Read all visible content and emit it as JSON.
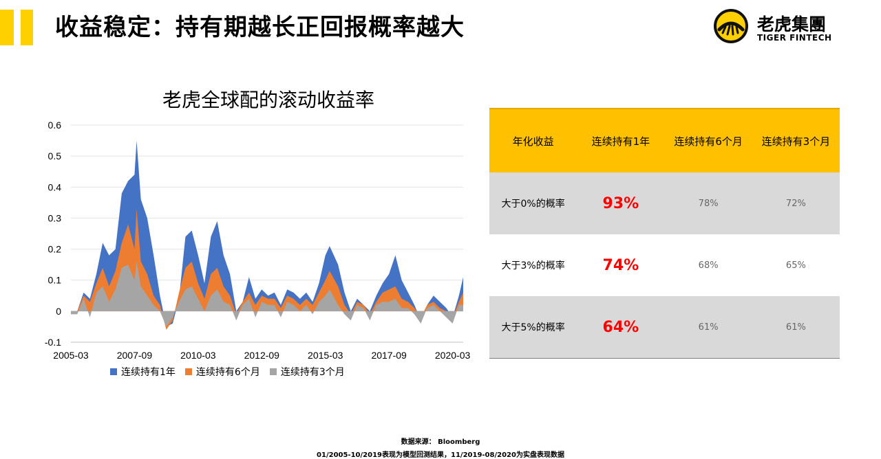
{
  "page": {
    "title": "收益稳定：持有期越长正回报概率越大",
    "accent_color": "#ffd000"
  },
  "logo": {
    "name_cn": "老虎集團",
    "name_en": "TIGER FINTECH",
    "icon": "tiger-logo-icon"
  },
  "chart_data": {
    "type": "area",
    "title": "老虎全球配的滚动收益率",
    "x_tick_labels": [
      "2005-03",
      "2007-09",
      "2010-03",
      "2012-09",
      "2015-03",
      "2017-09",
      "2020-03"
    ],
    "x_range": [
      "2005-03",
      "2020-08"
    ],
    "y_ticks": [
      "0.6",
      "0.5",
      "0.4",
      "0.3",
      "0.2",
      "0.1",
      "0",
      "-0.1"
    ],
    "ylim": [
      -0.1,
      0.6
    ],
    "grid": true,
    "legend_position": "bottom",
    "series": [
      {
        "name": "连续持有1年",
        "color": "#4472c4",
        "points": [
          [
            "2005-03",
            -0.01
          ],
          [
            "2005-06",
            0.0
          ],
          [
            "2005-09",
            0.06
          ],
          [
            "2005-12",
            0.04
          ],
          [
            "2006-03",
            0.12
          ],
          [
            "2006-06",
            0.22
          ],
          [
            "2006-09",
            0.18
          ],
          [
            "2006-12",
            0.2
          ],
          [
            "2007-03",
            0.38
          ],
          [
            "2007-06",
            0.42
          ],
          [
            "2007-09",
            0.44
          ],
          [
            "2007-10",
            0.55
          ],
          [
            "2007-12",
            0.36
          ],
          [
            "2008-03",
            0.3
          ],
          [
            "2008-06",
            0.18
          ],
          [
            "2008-09",
            0.05
          ],
          [
            "2008-12",
            -0.05
          ],
          [
            "2009-03",
            -0.04
          ],
          [
            "2009-06",
            0.04
          ],
          [
            "2009-09",
            0.24
          ],
          [
            "2009-12",
            0.26
          ],
          [
            "2010-03",
            0.18
          ],
          [
            "2010-06",
            0.09
          ],
          [
            "2010-09",
            0.24
          ],
          [
            "2010-12",
            0.29
          ],
          [
            "2011-03",
            0.18
          ],
          [
            "2011-06",
            0.12
          ],
          [
            "2011-09",
            0.0
          ],
          [
            "2011-12",
            0.03
          ],
          [
            "2012-03",
            0.11
          ],
          [
            "2012-06",
            0.04
          ],
          [
            "2012-09",
            0.07
          ],
          [
            "2012-12",
            0.05
          ],
          [
            "2013-03",
            0.06
          ],
          [
            "2013-06",
            0.02
          ],
          [
            "2013-09",
            0.07
          ],
          [
            "2013-12",
            0.06
          ],
          [
            "2014-03",
            0.04
          ],
          [
            "2014-06",
            0.06
          ],
          [
            "2014-09",
            0.03
          ],
          [
            "2014-12",
            0.09
          ],
          [
            "2015-03",
            0.18
          ],
          [
            "2015-05",
            0.21
          ],
          [
            "2015-09",
            0.15
          ],
          [
            "2015-12",
            0.06
          ],
          [
            "2016-03",
            0.0
          ],
          [
            "2016-06",
            0.04
          ],
          [
            "2016-09",
            0.02
          ],
          [
            "2016-12",
            0.0
          ],
          [
            "2017-03",
            0.05
          ],
          [
            "2017-06",
            0.09
          ],
          [
            "2017-09",
            0.12
          ],
          [
            "2017-12",
            0.18
          ],
          [
            "2018-03",
            0.1
          ],
          [
            "2018-06",
            0.06
          ],
          [
            "2018-09",
            0.02
          ],
          [
            "2018-12",
            -0.03
          ],
          [
            "2019-03",
            0.02
          ],
          [
            "2019-06",
            0.05
          ],
          [
            "2019-09",
            0.03
          ],
          [
            "2019-12",
            0.01
          ],
          [
            "2020-03",
            -0.02
          ],
          [
            "2020-06",
            0.05
          ],
          [
            "2020-08",
            0.11
          ]
        ]
      },
      {
        "name": "连续持有6个月",
        "color": "#ed7d31",
        "points": [
          [
            "2005-03",
            -0.01
          ],
          [
            "2005-06",
            0.0
          ],
          [
            "2005-09",
            0.05
          ],
          [
            "2005-12",
            0.03
          ],
          [
            "2006-03",
            0.09
          ],
          [
            "2006-06",
            0.14
          ],
          [
            "2006-09",
            0.08
          ],
          [
            "2006-12",
            0.13
          ],
          [
            "2007-03",
            0.22
          ],
          [
            "2007-06",
            0.28
          ],
          [
            "2007-09",
            0.2
          ],
          [
            "2007-10",
            0.33
          ],
          [
            "2007-12",
            0.16
          ],
          [
            "2008-03",
            0.12
          ],
          [
            "2008-06",
            0.05
          ],
          [
            "2008-09",
            0.02
          ],
          [
            "2008-12",
            -0.06
          ],
          [
            "2009-03",
            -0.03
          ],
          [
            "2009-06",
            0.06
          ],
          [
            "2009-09",
            0.14
          ],
          [
            "2009-12",
            0.16
          ],
          [
            "2010-03",
            0.09
          ],
          [
            "2010-06",
            0.04
          ],
          [
            "2010-09",
            0.12
          ],
          [
            "2010-12",
            0.14
          ],
          [
            "2011-03",
            0.08
          ],
          [
            "2011-06",
            0.05
          ],
          [
            "2011-09",
            -0.01
          ],
          [
            "2011-12",
            0.03
          ],
          [
            "2012-03",
            0.06
          ],
          [
            "2012-06",
            0.02
          ],
          [
            "2012-09",
            0.05
          ],
          [
            "2012-12",
            0.04
          ],
          [
            "2013-03",
            0.04
          ],
          [
            "2013-06",
            0.01
          ],
          [
            "2013-09",
            0.05
          ],
          [
            "2013-12",
            0.04
          ],
          [
            "2014-03",
            0.02
          ],
          [
            "2014-06",
            0.04
          ],
          [
            "2014-09",
            0.02
          ],
          [
            "2014-12",
            0.06
          ],
          [
            "2015-03",
            0.1
          ],
          [
            "2015-05",
            0.13
          ],
          [
            "2015-09",
            0.08
          ],
          [
            "2015-12",
            0.02
          ],
          [
            "2016-03",
            -0.01
          ],
          [
            "2016-06",
            0.03
          ],
          [
            "2016-09",
            0.02
          ],
          [
            "2016-12",
            -0.01
          ],
          [
            "2017-03",
            0.03
          ],
          [
            "2017-06",
            0.06
          ],
          [
            "2017-09",
            0.07
          ],
          [
            "2017-12",
            0.08
          ],
          [
            "2018-03",
            0.04
          ],
          [
            "2018-06",
            0.03
          ],
          [
            "2018-09",
            0.01
          ],
          [
            "2018-12",
            -0.02
          ],
          [
            "2019-03",
            0.02
          ],
          [
            "2019-06",
            0.03
          ],
          [
            "2019-09",
            0.01
          ],
          [
            "2019-12",
            0.0
          ],
          [
            "2020-03",
            -0.02
          ],
          [
            "2020-06",
            0.03
          ],
          [
            "2020-08",
            0.06
          ]
        ]
      },
      {
        "name": "连续持有3个月",
        "color": "#a5a5a5",
        "points": [
          [
            "2005-03",
            -0.01
          ],
          [
            "2005-06",
            -0.01
          ],
          [
            "2005-09",
            0.04
          ],
          [
            "2005-12",
            -0.02
          ],
          [
            "2006-03",
            0.06
          ],
          [
            "2006-06",
            0.08
          ],
          [
            "2006-09",
            0.03
          ],
          [
            "2006-12",
            0.07
          ],
          [
            "2007-03",
            0.14
          ],
          [
            "2007-06",
            0.15
          ],
          [
            "2007-09",
            0.1
          ],
          [
            "2007-10",
            0.16
          ],
          [
            "2007-12",
            0.08
          ],
          [
            "2008-03",
            0.05
          ],
          [
            "2008-06",
            0.02
          ],
          [
            "2008-09",
            0.0
          ],
          [
            "2008-12",
            -0.05
          ],
          [
            "2009-03",
            -0.02
          ],
          [
            "2009-06",
            0.03
          ],
          [
            "2009-09",
            0.07
          ],
          [
            "2009-12",
            0.08
          ],
          [
            "2010-03",
            0.04
          ],
          [
            "2010-06",
            0.0
          ],
          [
            "2010-09",
            0.05
          ],
          [
            "2010-12",
            0.07
          ],
          [
            "2011-03",
            0.03
          ],
          [
            "2011-06",
            0.02
          ],
          [
            "2011-09",
            -0.03
          ],
          [
            "2011-12",
            0.02
          ],
          [
            "2012-03",
            0.04
          ],
          [
            "2012-06",
            -0.02
          ],
          [
            "2012-09",
            0.03
          ],
          [
            "2012-12",
            0.02
          ],
          [
            "2013-03",
            0.02
          ],
          [
            "2013-06",
            -0.02
          ],
          [
            "2013-09",
            0.03
          ],
          [
            "2013-12",
            0.02
          ],
          [
            "2014-03",
            0.0
          ],
          [
            "2014-06",
            0.02
          ],
          [
            "2014-09",
            -0.01
          ],
          [
            "2014-12",
            0.03
          ],
          [
            "2015-03",
            0.05
          ],
          [
            "2015-05",
            0.07
          ],
          [
            "2015-09",
            0.02
          ],
          [
            "2015-12",
            -0.01
          ],
          [
            "2016-03",
            -0.03
          ],
          [
            "2016-06",
            0.02
          ],
          [
            "2016-09",
            0.01
          ],
          [
            "2016-12",
            -0.03
          ],
          [
            "2017-03",
            0.02
          ],
          [
            "2017-06",
            0.03
          ],
          [
            "2017-09",
            0.03
          ],
          [
            "2017-12",
            0.04
          ],
          [
            "2018-03",
            0.01
          ],
          [
            "2018-06",
            0.01
          ],
          [
            "2018-09",
            -0.01
          ],
          [
            "2018-12",
            -0.04
          ],
          [
            "2019-03",
            0.01
          ],
          [
            "2019-06",
            0.02
          ],
          [
            "2019-09",
            0.0
          ],
          [
            "2019-12",
            -0.02
          ],
          [
            "2020-03",
            -0.04
          ],
          [
            "2020-06",
            0.02
          ],
          [
            "2020-08",
            0.02
          ]
        ]
      }
    ]
  },
  "table": {
    "headers": [
      "年化收益",
      "连续持有1年",
      "连续持有6个月",
      "连续持有3个月"
    ],
    "rows": [
      {
        "label": "大于0%的概率",
        "one_year": "93%",
        "six_month": "78%",
        "three_month": "72%"
      },
      {
        "label": "大于3%的概率",
        "one_year": "74%",
        "six_month": "68%",
        "three_month": "65%"
      },
      {
        "label": "大于5%的概率",
        "one_year": "64%",
        "six_month": "61%",
        "three_month": "61%"
      }
    ],
    "header_color": "#ffc000",
    "highlight_color": "#ff0000"
  },
  "footnotes": {
    "source": "数据来源：  Bloomberg",
    "note": "01/2005-10/2019表现为模型回测结果，11/2019-08/2020为实盘表现数据"
  }
}
